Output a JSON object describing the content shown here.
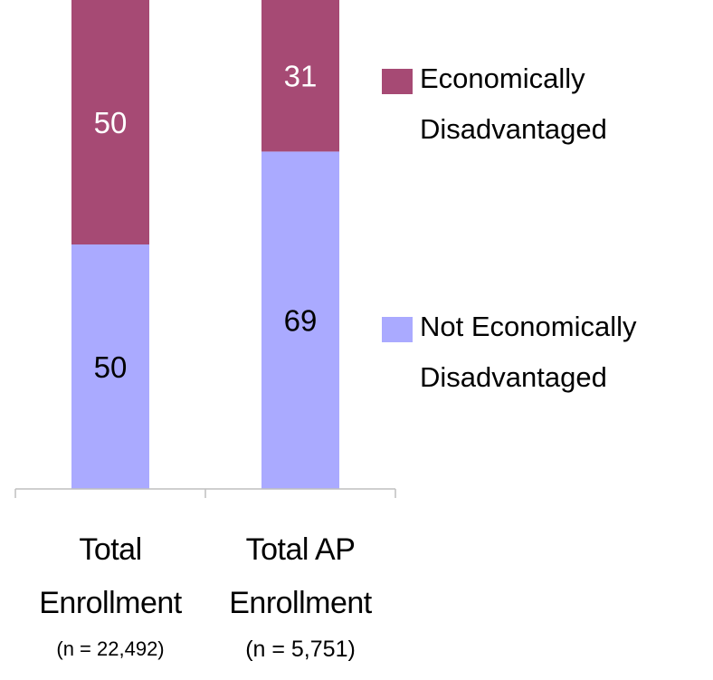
{
  "chart_data": {
    "type": "bar",
    "stacked": true,
    "categories": [
      "Total Enrollment",
      "Total AP Enrollment"
    ],
    "category_lines": [
      [
        "Total",
        "Enrollment"
      ],
      [
        "Total AP",
        "Enrollment"
      ]
    ],
    "category_notes": [
      "(n = 22,492)",
      "(n = 5,751)"
    ],
    "series": [
      {
        "name": "Not Economically Disadvantaged",
        "color": "#aaaaff",
        "values": [
          50,
          69
        ],
        "labels": [
          "50",
          "69"
        ]
      },
      {
        "name": "Economically Disadvantaged",
        "color": "#a64a74",
        "values": [
          50,
          31
        ],
        "labels": [
          "50",
          "31"
        ]
      }
    ],
    "ylim": [
      0,
      100
    ],
    "grid": false,
    "legend_position": "right"
  },
  "legend": [
    {
      "lines": [
        "Economically",
        "Disadvantaged"
      ],
      "color": "#a64a74",
      "icon": "square-swatch"
    },
    {
      "lines": [
        "Not Economically",
        "Disadvantaged"
      ],
      "color": "#aaaaff",
      "icon": "square-swatch"
    }
  ]
}
